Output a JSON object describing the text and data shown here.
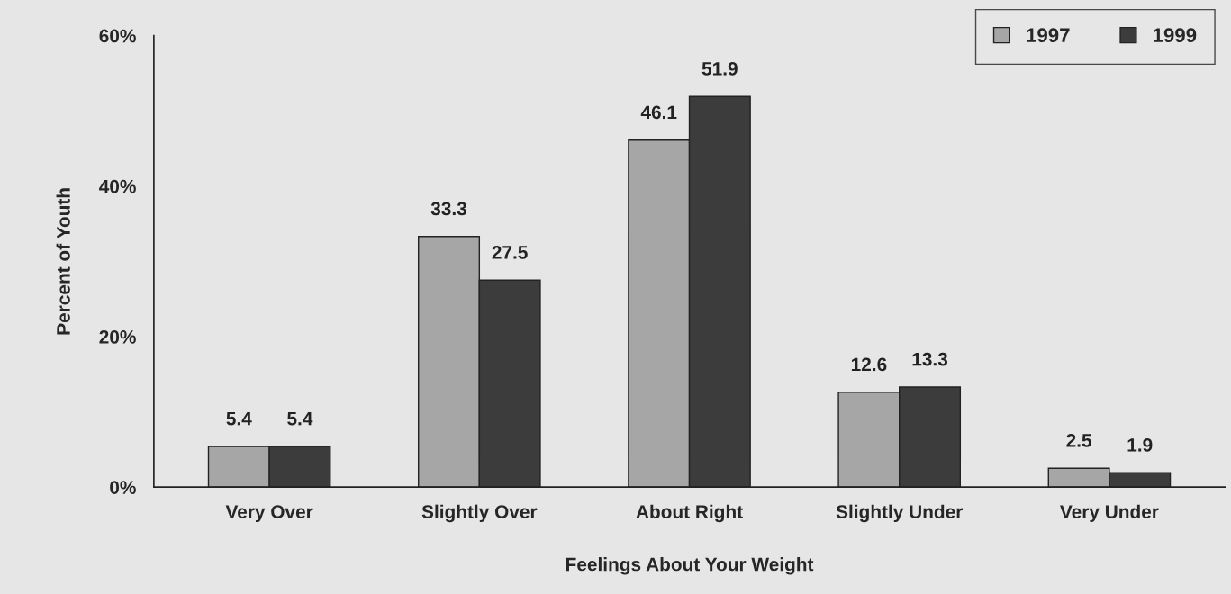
{
  "chart_data": {
    "type": "bar",
    "xlabel": "Feelings About Your Weight",
    "ylabel": "Percent of Youth",
    "categories": [
      "Very Over",
      "Slightly Over",
      "About Right",
      "Slightly Under",
      "Very Under"
    ],
    "series": [
      {
        "name": "1997",
        "color": "#a6a6a6",
        "values": [
          5.4,
          33.3,
          46.1,
          12.6,
          2.5
        ]
      },
      {
        "name": "1999",
        "color": "#3c3c3c",
        "values": [
          5.4,
          27.5,
          51.9,
          13.3,
          1.9
        ]
      }
    ],
    "ylim": [
      0,
      60
    ],
    "yticks": [
      {
        "value": 0,
        "label": "0%"
      },
      {
        "value": 20,
        "label": "20%"
      },
      {
        "value": 40,
        "label": "40%"
      },
      {
        "value": 60,
        "label": "60%"
      }
    ],
    "data_labels": true,
    "grid": false,
    "legend": "top right"
  }
}
